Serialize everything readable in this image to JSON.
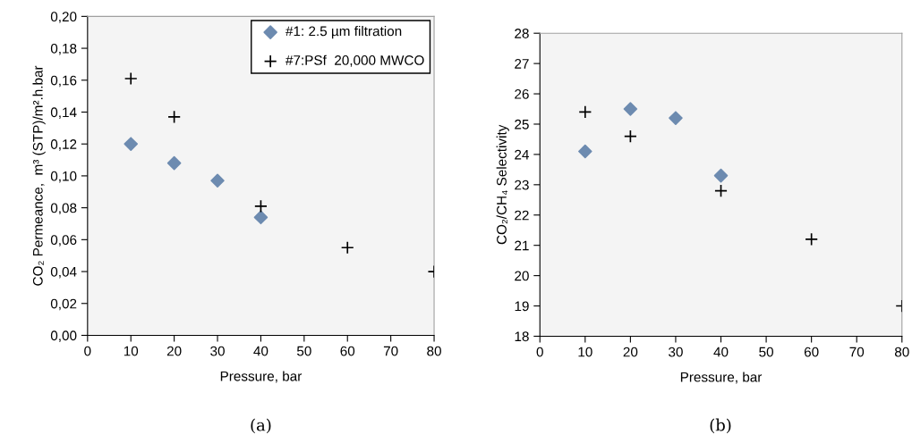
{
  "chart_data": [
    {
      "type": "scatter",
      "xlabel": "Pressure, bar",
      "ylabel": "CO₂ Permeance,  m³ (STP)/m².h.bar",
      "annotations": [
        "(a)"
      ],
      "xlim": [
        0,
        80
      ],
      "xticks": [
        0,
        10,
        20,
        30,
        40,
        50,
        60,
        70,
        80
      ],
      "ylim": [
        0,
        0.2
      ],
      "yticks": [
        {
          "value": 0,
          "label": "0,00"
        },
        {
          "value": 0.02,
          "label": "0,02"
        },
        {
          "value": 0.04,
          "label": "0,04"
        },
        {
          "value": 0.06,
          "label": "0,06"
        },
        {
          "value": 0.08,
          "label": "0,08"
        },
        {
          "value": 0.1,
          "label": "0,10"
        },
        {
          "value": 0.12,
          "label": "0,12"
        },
        {
          "value": 0.14,
          "label": "0,14"
        },
        {
          "value": 0.16,
          "label": "0,16"
        },
        {
          "value": 0.18,
          "label": "0,18"
        },
        {
          "value": 0.2,
          "label": "0,20"
        }
      ],
      "grid": false,
      "legend": "top right",
      "series": [
        {
          "name": "#1: 2.5 µm filtration",
          "color": "#6d8bb0",
          "marker": "diamond",
          "x": [
            10,
            20,
            30,
            40
          ],
          "values": [
            0.12,
            0.108,
            0.097,
            0.074
          ]
        },
        {
          "name": "#7:PSf  20,000 MWCO",
          "color": "#000000",
          "marker": "cross",
          "x": [
            10,
            20,
            40,
            60,
            80
          ],
          "values": [
            0.161,
            0.137,
            0.081,
            0.055,
            0.04
          ]
        }
      ]
    },
    {
      "type": "scatter",
      "xlabel": "Pressure, bar",
      "ylabel": "CO₂/CH₄ Selectivity",
      "annotations": [
        "(b)"
      ],
      "xlim": [
        0,
        80
      ],
      "xticks": [
        0,
        10,
        20,
        30,
        40,
        50,
        60,
        70,
        80
      ],
      "ylim": [
        18,
        28
      ],
      "yticks": [
        18,
        19,
        20,
        21,
        22,
        23,
        24,
        25,
        26,
        27,
        28
      ],
      "grid": false,
      "series": [
        {
          "color": "#6d8bb0",
          "marker": "diamond",
          "x": [
            10,
            20,
            30,
            40
          ],
          "values": [
            24.1,
            25.5,
            25.2,
            23.3
          ]
        },
        {
          "color": "#000000",
          "marker": "cross",
          "x": [
            10,
            20,
            40,
            60,
            80
          ],
          "values": [
            25.4,
            24.6,
            22.8,
            21.2,
            19.0
          ]
        }
      ]
    }
  ]
}
